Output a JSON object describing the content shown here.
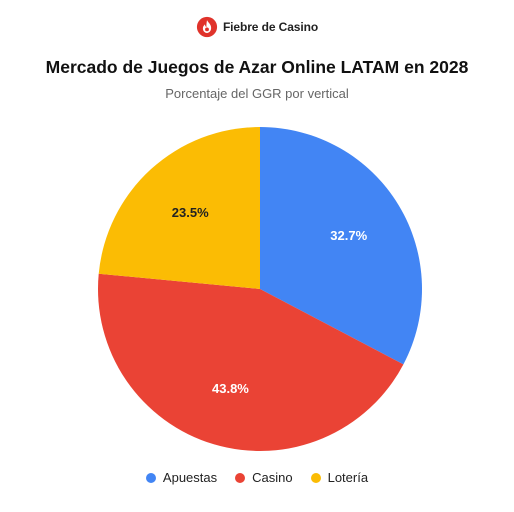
{
  "brand": {
    "name": "Fiebre de Casino",
    "icon": "flame-logo-icon",
    "color": "#e0332b"
  },
  "chart_data": {
    "type": "pie",
    "title": "Mercado de Juegos de Azar Online LATAM en 2028",
    "subtitle": "Porcentaje del GGR por vertical",
    "categories": [
      "Apuestas",
      "Casino",
      "Lotería"
    ],
    "values": [
      32.7,
      43.8,
      23.5
    ],
    "labels": [
      "32.7%",
      "43.8%",
      "23.5%"
    ],
    "colors": [
      "#4285f4",
      "#ea4335",
      "#fbbc04"
    ],
    "label_colors": [
      "#ffffff",
      "#ffffff",
      "#222222"
    ],
    "start_angle": "12 o'clock",
    "direction": "clockwise",
    "legend_position": "bottom"
  }
}
